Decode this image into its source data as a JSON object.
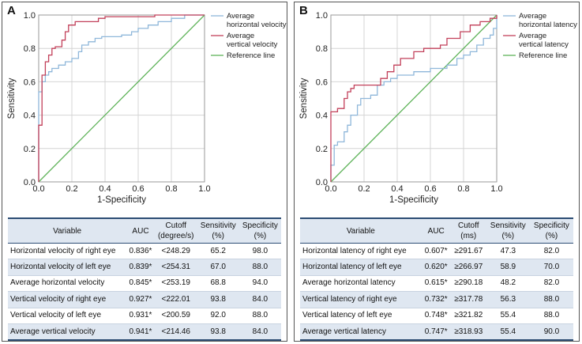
{
  "panels": [
    {
      "id": "A",
      "chart_data": {
        "type": "line",
        "title": "",
        "xlabel": "1-Specificity",
        "ylabel": "Sensitivity",
        "xlim": [
          0,
          1
        ],
        "ylim": [
          0,
          1
        ],
        "grid": true,
        "legend": "top-right",
        "x_ticks": [
          "0.0",
          "0.2",
          "0.4",
          "0.6",
          "0.8",
          "1.0"
        ],
        "y_ticks": [
          "0.0",
          "0.2",
          "0.4",
          "0.6",
          "0.8",
          "1.0"
        ],
        "series": [
          {
            "name": "Average horizontal velocity",
            "label_lines": [
              "Average",
              "horizontal velocity"
            ],
            "color": "#8fb7da",
            "points": [
              [
                0,
                0
              ],
              [
                0,
                0.54
              ],
              [
                0.02,
                0.54
              ],
              [
                0.02,
                0.6
              ],
              [
                0.04,
                0.6
              ],
              [
                0.04,
                0.64
              ],
              [
                0.06,
                0.64
              ],
              [
                0.06,
                0.66
              ],
              [
                0.08,
                0.66
              ],
              [
                0.08,
                0.68
              ],
              [
                0.12,
                0.68
              ],
              [
                0.12,
                0.7
              ],
              [
                0.16,
                0.7
              ],
              [
                0.16,
                0.72
              ],
              [
                0.2,
                0.72
              ],
              [
                0.2,
                0.74
              ],
              [
                0.24,
                0.74
              ],
              [
                0.24,
                0.78
              ],
              [
                0.26,
                0.78
              ],
              [
                0.26,
                0.82
              ],
              [
                0.3,
                0.82
              ],
              [
                0.3,
                0.84
              ],
              [
                0.34,
                0.84
              ],
              [
                0.34,
                0.86
              ],
              [
                0.38,
                0.86
              ],
              [
                0.38,
                0.87
              ],
              [
                0.5,
                0.87
              ],
              [
                0.5,
                0.88
              ],
              [
                0.56,
                0.88
              ],
              [
                0.56,
                0.9
              ],
              [
                0.6,
                0.9
              ],
              [
                0.6,
                0.92
              ],
              [
                0.66,
                0.92
              ],
              [
                0.66,
                0.94
              ],
              [
                0.72,
                0.94
              ],
              [
                0.72,
                0.96
              ],
              [
                0.8,
                0.96
              ],
              [
                0.8,
                0.98
              ],
              [
                0.88,
                0.98
              ],
              [
                0.88,
                1
              ],
              [
                1,
                1
              ]
            ]
          },
          {
            "name": "Average vertical velocity",
            "label_lines": [
              "Average",
              "vertical velocity"
            ],
            "color": "#c2405a",
            "points": [
              [
                0,
                0
              ],
              [
                0,
                0.34
              ],
              [
                0.02,
                0.34
              ],
              [
                0.02,
                0.64
              ],
              [
                0.04,
                0.64
              ],
              [
                0.04,
                0.72
              ],
              [
                0.06,
                0.72
              ],
              [
                0.06,
                0.76
              ],
              [
                0.08,
                0.76
              ],
              [
                0.08,
                0.8
              ],
              [
                0.1,
                0.8
              ],
              [
                0.1,
                0.81
              ],
              [
                0.14,
                0.81
              ],
              [
                0.14,
                0.85
              ],
              [
                0.16,
                0.85
              ],
              [
                0.16,
                0.9
              ],
              [
                0.18,
                0.9
              ],
              [
                0.18,
                0.94
              ],
              [
                0.22,
                0.94
              ],
              [
                0.22,
                0.96
              ],
              [
                0.36,
                0.96
              ],
              [
                0.36,
                0.98
              ],
              [
                0.4,
                0.98
              ],
              [
                0.4,
                0.99
              ],
              [
                0.7,
                0.99
              ],
              [
                0.7,
                1
              ],
              [
                1,
                1
              ]
            ]
          },
          {
            "name": "Reference line",
            "label_lines": [
              "Reference line"
            ],
            "color": "#5fb35a",
            "points": [
              [
                0,
                0
              ],
              [
                1,
                1
              ]
            ]
          }
        ]
      },
      "table": {
        "headers": [
          [
            "Variable"
          ],
          [
            "AUC"
          ],
          [
            "Cutoff",
            "(degree/s)"
          ],
          [
            "Sensitivity",
            "(%)"
          ],
          [
            "Specificity",
            "(%)"
          ]
        ],
        "rows": [
          [
            "Horizontal velocity of right eye",
            "0.836*",
            "<248.29",
            "65.2",
            "98.0"
          ],
          [
            "Horizontal velocity of left eye",
            "0.839*",
            "<254.31",
            "67.0",
            "88.0"
          ],
          [
            "Average horizontal velocity",
            "0.845*",
            "<253.19",
            "68.8",
            "94.0"
          ],
          [
            "Vertical velocity of right eye",
            "0.927*",
            "<222.01",
            "93.8",
            "84.0"
          ],
          [
            "Vertical velocity of left eye",
            "0.931*",
            "<200.59",
            "92.0",
            "88.0"
          ],
          [
            "Average vertical velocity",
            "0.941*",
            "<214.46",
            "93.8",
            "84.0"
          ]
        ]
      }
    },
    {
      "id": "B",
      "chart_data": {
        "type": "line",
        "title": "",
        "xlabel": "1-Specificity",
        "ylabel": "Sensitivity",
        "xlim": [
          0,
          1
        ],
        "ylim": [
          0,
          1
        ],
        "grid": true,
        "legend": "top-right",
        "x_ticks": [
          "0.0",
          "0.2",
          "0.4",
          "0.6",
          "0.8",
          "1.0"
        ],
        "y_ticks": [
          "0.0",
          "0.2",
          "0.4",
          "0.6",
          "0.8",
          "1.0"
        ],
        "series": [
          {
            "name": "Average horizontal latency",
            "label_lines": [
              "Average",
              "horizontal latency"
            ],
            "color": "#8fb7da",
            "points": [
              [
                0,
                0
              ],
              [
                0,
                0.1
              ],
              [
                0.02,
                0.1
              ],
              [
                0.02,
                0.22
              ],
              [
                0.04,
                0.22
              ],
              [
                0.04,
                0.24
              ],
              [
                0.08,
                0.24
              ],
              [
                0.08,
                0.3
              ],
              [
                0.1,
                0.3
              ],
              [
                0.1,
                0.34
              ],
              [
                0.12,
                0.34
              ],
              [
                0.12,
                0.4
              ],
              [
                0.16,
                0.4
              ],
              [
                0.16,
                0.46
              ],
              [
                0.18,
                0.46
              ],
              [
                0.18,
                0.5
              ],
              [
                0.24,
                0.5
              ],
              [
                0.24,
                0.52
              ],
              [
                0.28,
                0.52
              ],
              [
                0.28,
                0.58
              ],
              [
                0.32,
                0.58
              ],
              [
                0.32,
                0.6
              ],
              [
                0.36,
                0.6
              ],
              [
                0.36,
                0.62
              ],
              [
                0.4,
                0.62
              ],
              [
                0.4,
                0.64
              ],
              [
                0.5,
                0.64
              ],
              [
                0.5,
                0.66
              ],
              [
                0.6,
                0.66
              ],
              [
                0.6,
                0.68
              ],
              [
                0.7,
                0.68
              ],
              [
                0.7,
                0.7
              ],
              [
                0.76,
                0.7
              ],
              [
                0.76,
                0.74
              ],
              [
                0.8,
                0.74
              ],
              [
                0.8,
                0.76
              ],
              [
                0.84,
                0.76
              ],
              [
                0.84,
                0.78
              ],
              [
                0.88,
                0.78
              ],
              [
                0.88,
                0.82
              ],
              [
                0.92,
                0.82
              ],
              [
                0.92,
                0.86
              ],
              [
                0.96,
                0.86
              ],
              [
                0.96,
                0.88
              ],
              [
                0.98,
                0.88
              ],
              [
                0.98,
                0.92
              ],
              [
                1,
                0.92
              ],
              [
                1,
                1
              ]
            ]
          },
          {
            "name": "Average vertical latency",
            "label_lines": [
              "Average",
              "vertical latency"
            ],
            "color": "#c2405a",
            "points": [
              [
                0,
                0
              ],
              [
                0,
                0.42
              ],
              [
                0.04,
                0.42
              ],
              [
                0.04,
                0.44
              ],
              [
                0.08,
                0.44
              ],
              [
                0.08,
                0.5
              ],
              [
                0.1,
                0.5
              ],
              [
                0.1,
                0.54
              ],
              [
                0.12,
                0.54
              ],
              [
                0.12,
                0.56
              ],
              [
                0.14,
                0.56
              ],
              [
                0.14,
                0.58
              ],
              [
                0.3,
                0.58
              ],
              [
                0.3,
                0.62
              ],
              [
                0.34,
                0.62
              ],
              [
                0.34,
                0.66
              ],
              [
                0.38,
                0.66
              ],
              [
                0.38,
                0.7
              ],
              [
                0.42,
                0.7
              ],
              [
                0.42,
                0.74
              ],
              [
                0.5,
                0.74
              ],
              [
                0.5,
                0.78
              ],
              [
                0.56,
                0.78
              ],
              [
                0.56,
                0.8
              ],
              [
                0.66,
                0.8
              ],
              [
                0.66,
                0.82
              ],
              [
                0.7,
                0.82
              ],
              [
                0.7,
                0.86
              ],
              [
                0.78,
                0.86
              ],
              [
                0.78,
                0.9
              ],
              [
                0.84,
                0.9
              ],
              [
                0.84,
                0.94
              ],
              [
                0.9,
                0.94
              ],
              [
                0.9,
                0.96
              ],
              [
                0.96,
                0.96
              ],
              [
                0.96,
                0.98
              ],
              [
                1,
                0.98
              ],
              [
                1,
                1
              ]
            ]
          },
          {
            "name": "Reference line",
            "label_lines": [
              "Reference line"
            ],
            "color": "#5fb35a",
            "points": [
              [
                0,
                0
              ],
              [
                1,
                1
              ]
            ]
          }
        ]
      },
      "table": {
        "headers": [
          [
            "Variable"
          ],
          [
            "AUC"
          ],
          [
            "Cutoff",
            "(ms)"
          ],
          [
            "Sensitivity",
            "(%)"
          ],
          [
            "Specificity",
            "(%)"
          ]
        ],
        "rows": [
          [
            "Horizontal latency of right eye",
            "0.607*",
            "≥291.67",
            "47.3",
            "82.0"
          ],
          [
            "Horizontal latency of left eye",
            "0.620*",
            "≥266.97",
            "58.9",
            "70.0"
          ],
          [
            "Average horizontal latency",
            "0.615*",
            "≥290.18",
            "48.2",
            "82.0"
          ],
          [
            "Vertical latency of right eye",
            "0.732*",
            "≥317.78",
            "56.3",
            "88.0"
          ],
          [
            "Vertical latency of left eye",
            "0.748*",
            "≥321.82",
            "55.4",
            "88.0"
          ],
          [
            "Average vertical latency",
            "0.747*",
            "≥318.93",
            "55.4",
            "90.0"
          ]
        ]
      }
    }
  ]
}
